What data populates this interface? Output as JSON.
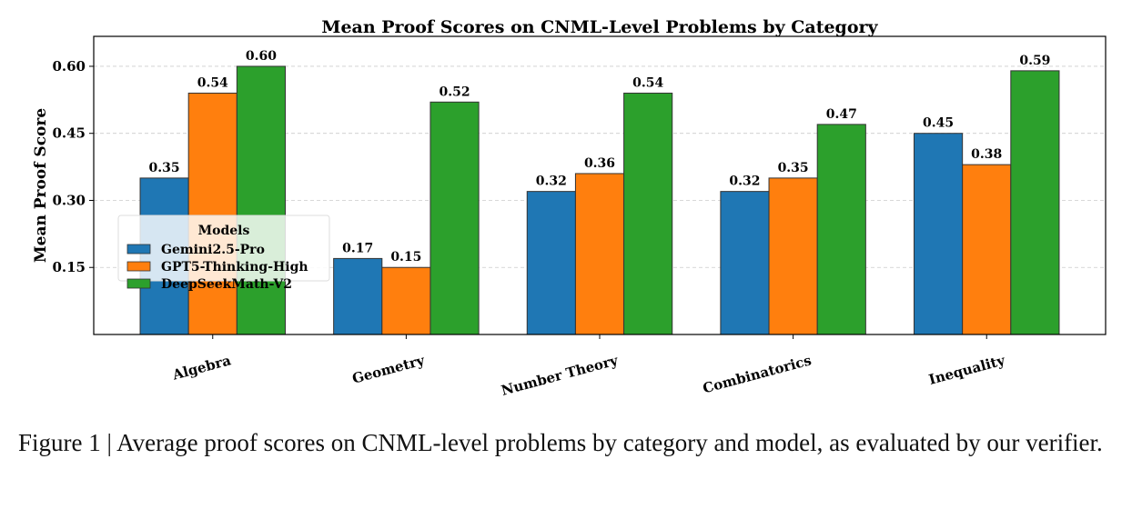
{
  "chart_data": {
    "type": "bar",
    "title": "Mean Proof Scores on CNML-Level Problems by Category",
    "xlabel": "",
    "ylabel": "Mean Proof Score",
    "categories": [
      "Algebra",
      "Geometry",
      "Number Theory",
      "Combinatorics",
      "Inequality"
    ],
    "series": [
      {
        "name": "Gemini2.5-Pro",
        "color": "#1f77b4",
        "values": [
          0.35,
          0.17,
          0.32,
          0.32,
          0.45
        ]
      },
      {
        "name": "GPT5-Thinking-High",
        "color": "#ff7f0e",
        "values": [
          0.54,
          0.15,
          0.36,
          0.35,
          0.38
        ]
      },
      {
        "name": "DeepSeekMath-V2",
        "color": "#2ca02c",
        "values": [
          0.6,
          0.52,
          0.54,
          0.47,
          0.59
        ]
      }
    ],
    "ylim": [
      0,
      0.667
    ],
    "yticks": [
      "0.15",
      "0.30",
      "0.45",
      "0.60"
    ],
    "grid": "horizontal dashed",
    "legend": {
      "title": "Models",
      "placement": "center-left"
    },
    "data_labels": true
  },
  "caption": "Figure 1 | Average proof scores on CNML-level problems by category and model, as evaluated by our verifier."
}
